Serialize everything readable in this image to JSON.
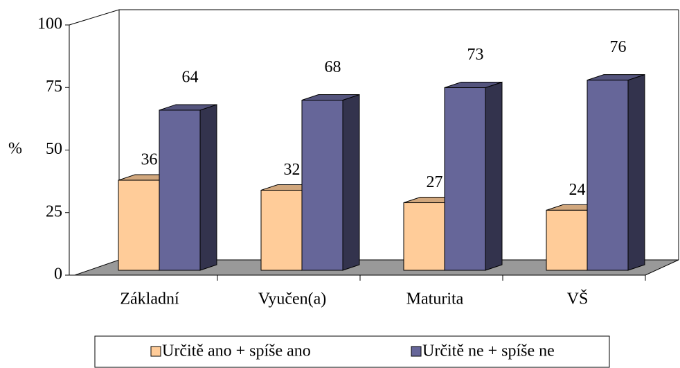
{
  "chart_data": {
    "type": "bar",
    "ylabel": "%",
    "categories": [
      "Základní",
      "Vyučen(a)",
      "Maturita",
      "VŠ"
    ],
    "series": [
      {
        "name": "Určitě ano + spíše ano",
        "color": "#FFCC99",
        "values": [
          36,
          32,
          27,
          24
        ]
      },
      {
        "name": "Určitě ne + spíše ne",
        "color": "#666699",
        "values": [
          64,
          68,
          73,
          76
        ]
      }
    ],
    "ylim": [
      0,
      100
    ],
    "yticks": [
      0,
      25,
      50,
      75,
      100
    ]
  }
}
